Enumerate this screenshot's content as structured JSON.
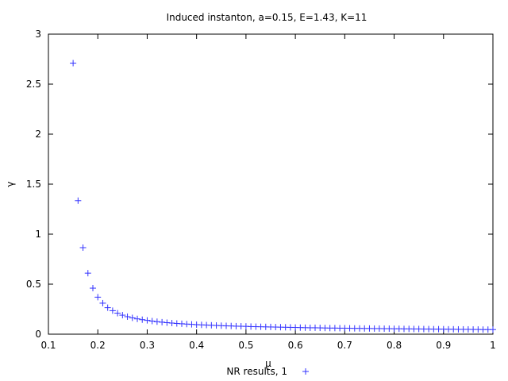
{
  "chart_data": {
    "type": "scatter",
    "title": "Induced instanton, a=0.15, E=1.43, K=11",
    "xlabel": "μ",
    "ylabel": "γ",
    "xlim": [
      0.1,
      1.0
    ],
    "ylim": [
      0,
      3
    ],
    "xticks": [
      "0.1",
      "0.2",
      "0.3",
      "0.4",
      "0.5",
      "0.6",
      "0.7",
      "0.8",
      "0.9",
      "1"
    ],
    "yticks": [
      "0",
      "0.5",
      "1",
      "1.5",
      "2",
      "2.5",
      "3"
    ],
    "grid": false,
    "legend_position": "bottom-center",
    "marker": "plus",
    "series": [
      {
        "name": "NR results, 1",
        "color": "#3333ff",
        "points": [
          [
            0.15,
            2.71
          ],
          [
            0.16,
            1.335
          ],
          [
            0.17,
            0.865
          ],
          [
            0.18,
            0.61
          ],
          [
            0.19,
            0.46
          ],
          [
            0.2,
            0.37
          ],
          [
            0.21,
            0.31
          ],
          [
            0.22,
            0.265
          ],
          [
            0.23,
            0.235
          ],
          [
            0.24,
            0.21
          ],
          [
            0.25,
            0.19
          ],
          [
            0.26,
            0.175
          ],
          [
            0.27,
            0.163
          ],
          [
            0.28,
            0.153
          ],
          [
            0.29,
            0.145
          ],
          [
            0.3,
            0.138
          ],
          [
            0.31,
            0.131
          ],
          [
            0.32,
            0.125
          ],
          [
            0.33,
            0.12
          ],
          [
            0.34,
            0.115
          ],
          [
            0.35,
            0.111
          ],
          [
            0.36,
            0.107
          ],
          [
            0.37,
            0.104
          ],
          [
            0.38,
            0.101
          ],
          [
            0.39,
            0.098
          ],
          [
            0.4,
            0.095
          ],
          [
            0.41,
            0.093
          ],
          [
            0.42,
            0.091
          ],
          [
            0.43,
            0.089
          ],
          [
            0.44,
            0.087
          ],
          [
            0.45,
            0.085
          ],
          [
            0.46,
            0.083
          ],
          [
            0.47,
            0.082
          ],
          [
            0.48,
            0.08
          ],
          [
            0.49,
            0.079
          ],
          [
            0.5,
            0.078
          ],
          [
            0.51,
            0.076
          ],
          [
            0.52,
            0.075
          ],
          [
            0.53,
            0.074
          ],
          [
            0.54,
            0.073
          ],
          [
            0.55,
            0.072
          ],
          [
            0.56,
            0.071
          ],
          [
            0.57,
            0.07
          ],
          [
            0.58,
            0.069
          ],
          [
            0.59,
            0.068
          ],
          [
            0.6,
            0.067
          ],
          [
            0.61,
            0.066
          ],
          [
            0.62,
            0.065
          ],
          [
            0.63,
            0.064
          ],
          [
            0.64,
            0.064
          ],
          [
            0.65,
            0.063
          ],
          [
            0.66,
            0.062
          ],
          [
            0.67,
            0.061
          ],
          [
            0.68,
            0.061
          ],
          [
            0.69,
            0.06
          ],
          [
            0.7,
            0.06
          ],
          [
            0.71,
            0.059
          ],
          [
            0.72,
            0.058
          ],
          [
            0.73,
            0.058
          ],
          [
            0.74,
            0.057
          ],
          [
            0.75,
            0.057
          ],
          [
            0.76,
            0.056
          ],
          [
            0.77,
            0.056
          ],
          [
            0.78,
            0.055
          ],
          [
            0.79,
            0.055
          ],
          [
            0.8,
            0.054
          ],
          [
            0.81,
            0.054
          ],
          [
            0.82,
            0.053
          ],
          [
            0.83,
            0.053
          ],
          [
            0.84,
            0.052
          ],
          [
            0.85,
            0.052
          ],
          [
            0.86,
            0.051
          ],
          [
            0.87,
            0.051
          ],
          [
            0.88,
            0.05
          ],
          [
            0.89,
            0.05
          ],
          [
            0.9,
            0.05
          ],
          [
            0.91,
            0.049
          ],
          [
            0.92,
            0.049
          ],
          [
            0.93,
            0.048
          ],
          [
            0.94,
            0.048
          ],
          [
            0.95,
            0.048
          ],
          [
            0.96,
            0.047
          ],
          [
            0.97,
            0.047
          ],
          [
            0.98,
            0.046
          ],
          [
            0.99,
            0.046
          ],
          [
            1.0,
            0.046
          ]
        ]
      }
    ]
  }
}
